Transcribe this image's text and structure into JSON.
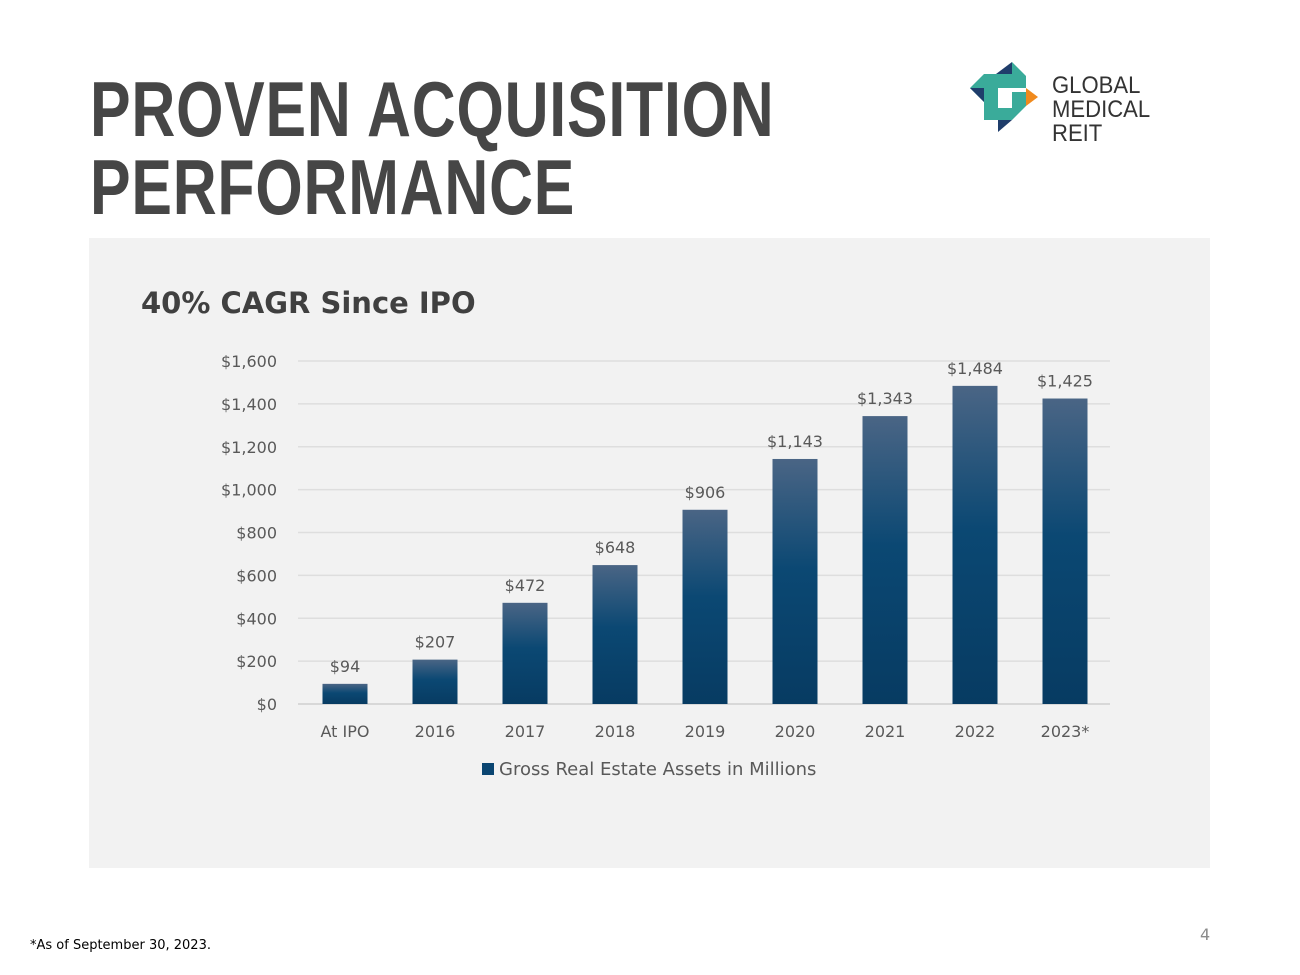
{
  "title_line1": "PROVEN ACQUISITION",
  "title_line2": "PERFORMANCE",
  "logo": {
    "line1": "GLOBAL",
    "line2": "MEDICAL REIT",
    "colors": [
      "#3aab9a",
      "#1f3d6b",
      "#f08a1d"
    ]
  },
  "subtitle": "40% CAGR Since IPO",
  "footnote": "*As of September 30, 2023.",
  "page_number": "4",
  "chart_data": {
    "type": "bar",
    "title": "40% CAGR Since IPO",
    "categories": [
      "At IPO",
      "2016",
      "2017",
      "2018",
      "2019",
      "2020",
      "2021",
      "2022",
      "2023*"
    ],
    "series": [
      {
        "name": "Gross Real Estate Assets in Millions",
        "values": [
          94,
          207,
          472,
          648,
          906,
          1143,
          1343,
          1484,
          1425
        ],
        "color": "#0a4571"
      }
    ],
    "data_labels": [
      "$94",
      "$207",
      "$472",
      "$648",
      "$906",
      "$1,143",
      "$1,343",
      "$1,484",
      "$1,425"
    ],
    "yticks": [
      0,
      200,
      400,
      600,
      800,
      1000,
      1200,
      1400,
      1600
    ],
    "ytick_labels": [
      "$0",
      "$200",
      "$400",
      "$600",
      "$800",
      "$1,000",
      "$1,200",
      "$1,400",
      "$1,600"
    ],
    "ylim": [
      0,
      1600
    ],
    "xlabel": "",
    "ylabel": "",
    "grid": true,
    "legend": "bottom"
  }
}
